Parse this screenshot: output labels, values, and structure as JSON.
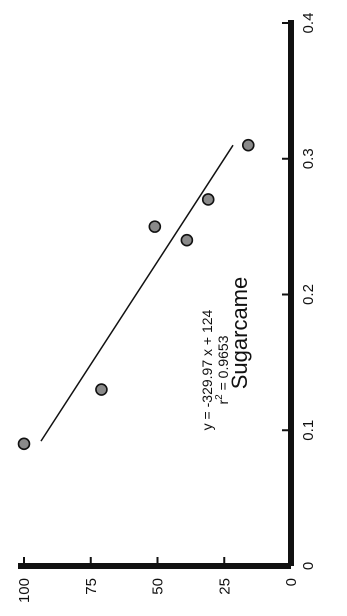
{
  "chart_data": {
    "type": "scatter",
    "title": "Sugarcame",
    "xlabel": "",
    "ylabel": "",
    "xlim": [
      0,
      0.4
    ],
    "ylim": [
      0,
      100
    ],
    "x_ticks": [
      "0",
      "0.1",
      "0.2",
      "0.3",
      "0.4"
    ],
    "y_ticks": [
      "0",
      "25",
      "50",
      "75",
      "100"
    ],
    "grid": false,
    "series": [
      {
        "x": [
          0.09,
          0.13,
          0.25,
          0.24,
          0.27,
          0.31
        ],
        "y": [
          100,
          71,
          51,
          39,
          31,
          16
        ]
      }
    ],
    "fit": {
      "slope": -329.97,
      "intercept": 124,
      "x_range": [
        0.092,
        0.31
      ]
    },
    "annotation": {
      "equation": "y = -329.97 x + 124",
      "r2_prefix": "r",
      "r2_sup": "2",
      "r2_value": " = 0.9653"
    }
  }
}
